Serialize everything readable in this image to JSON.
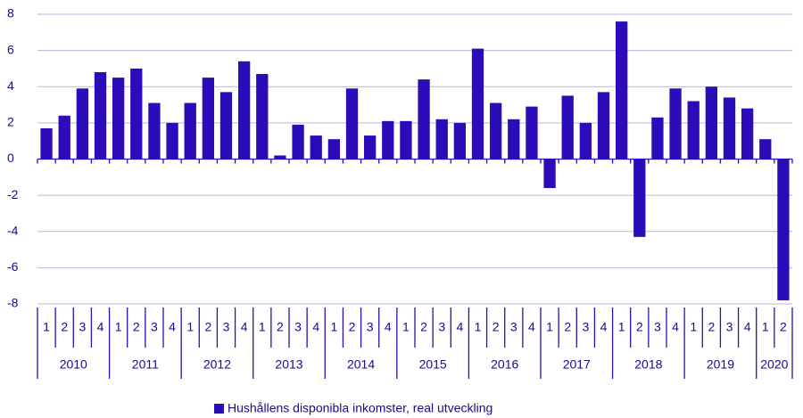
{
  "chart_data": {
    "type": "bar",
    "categories": [
      "1",
      "2",
      "3",
      "4",
      "1",
      "2",
      "3",
      "4",
      "1",
      "2",
      "3",
      "4",
      "1",
      "2",
      "3",
      "4",
      "1",
      "2",
      "3",
      "4",
      "1",
      "2",
      "3",
      "4",
      "1",
      "2",
      "3",
      "4",
      "1",
      "2",
      "3",
      "4",
      "1",
      "2",
      "3",
      "4",
      "1",
      "2",
      "3",
      "4",
      "1",
      "2"
    ],
    "groups": [
      "2010",
      "2011",
      "2012",
      "2013",
      "2014",
      "2015",
      "2016",
      "2017",
      "2018",
      "2019",
      "2020"
    ],
    "series": [
      {
        "name": "Hushållens disponibla inkomster, real utveckling",
        "color": "#2b0cb8",
        "values": [
          1.7,
          2.4,
          3.9,
          4.8,
          4.5,
          5.0,
          3.1,
          2.0,
          3.1,
          4.5,
          3.7,
          5.4,
          4.7,
          0.2,
          1.9,
          1.3,
          1.1,
          3.9,
          1.3,
          2.1,
          2.1,
          4.4,
          2.2,
          2.0,
          6.1,
          3.1,
          2.2,
          2.9,
          -1.6,
          3.5,
          2.0,
          3.7,
          7.6,
          -4.3,
          2.3,
          3.9,
          3.2,
          4.0,
          3.4,
          2.8,
          1.1,
          -7.8
        ]
      }
    ],
    "ylim": [
      -8,
      8
    ],
    "yticks": [
      -8,
      -6,
      -4,
      -2,
      0,
      2,
      4,
      6,
      8
    ],
    "grid": true,
    "legend": "bottom"
  }
}
